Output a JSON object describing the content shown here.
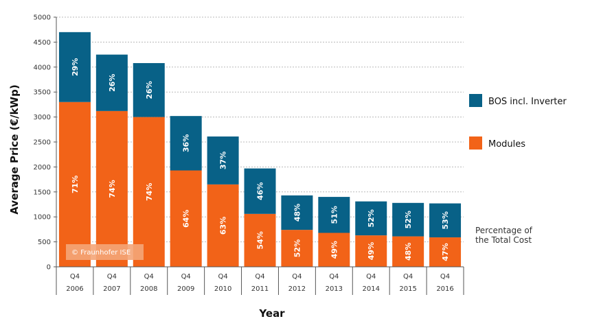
{
  "chart_data": {
    "type": "bar",
    "stacked": true,
    "title": "",
    "xlabel": "Year",
    "ylabel": "Average Price (€/kWp)",
    "ylim": [
      0,
      5000
    ],
    "yticks": [
      0,
      500,
      1000,
      1500,
      2000,
      2500,
      3000,
      3500,
      4000,
      4500,
      5000
    ],
    "categories": [
      "2006",
      "2007",
      "2008",
      "2009",
      "2010",
      "2011",
      "2012",
      "2013",
      "2014",
      "2015",
      "2016"
    ],
    "quarter_label": "Q4",
    "series": [
      {
        "name": "Modules",
        "color": "#f26318",
        "values": [
          3300,
          3120,
          3000,
          1930,
          1650,
          1060,
          740,
          680,
          630,
          610,
          590
        ],
        "percent_labels": [
          "71%",
          "74%",
          "74%",
          "64%",
          "63%",
          "54%",
          "52%",
          "49%",
          "49%",
          "48%",
          "47%"
        ]
      },
      {
        "name": "BOS incl. Inverter",
        "color": "#086187",
        "values": [
          1400,
          1130,
          1080,
          1090,
          960,
          910,
          690,
          720,
          680,
          670,
          680
        ],
        "percent_labels": [
          "29%",
          "26%",
          "26%",
          "36%",
          "37%",
          "46%",
          "48%",
          "51%",
          "52%",
          "52%",
          "53%"
        ]
      }
    ],
    "grid": true,
    "legend_position": "right",
    "note": "Percentage of the Total Cost",
    "copyright": "© Fraunhofer ISE"
  },
  "colors": {
    "grid": "#b8b8b8",
    "axis": "#555555"
  }
}
